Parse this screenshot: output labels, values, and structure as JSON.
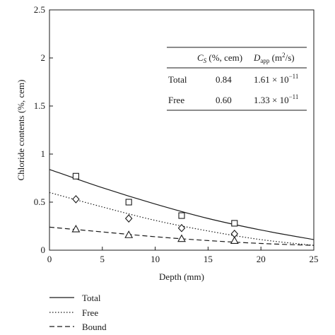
{
  "chart_data": {
    "type": "scatter",
    "xlabel": "Depth (mm)",
    "ylabel": "Chloride contents (%, cem)",
    "xlim": [
      0,
      25
    ],
    "ylim": [
      0,
      2.5
    ],
    "x_ticks": [
      "0",
      "5",
      "10",
      "15",
      "20",
      "25"
    ],
    "y_ticks": [
      "0",
      "0.5",
      "1",
      "1.5",
      "2",
      "2.5"
    ],
    "grid": false,
    "legend_placement": "bottom-left, below plot",
    "series": [
      {
        "name": "Total",
        "marker": "square",
        "line_style": "solid",
        "points_x": [
          2.5,
          7.5,
          12.5,
          17.5
        ],
        "points_y": [
          0.77,
          0.5,
          0.36,
          0.28
        ],
        "curve_x": [
          0,
          5,
          10,
          15,
          20,
          25
        ],
        "curve_y": [
          0.84,
          0.65,
          0.48,
          0.33,
          0.21,
          0.11
        ]
      },
      {
        "name": "Free",
        "marker": "diamond",
        "line_style": "dotted",
        "points_x": [
          2.5,
          7.5,
          12.5,
          17.5
        ],
        "points_y": [
          0.53,
          0.33,
          0.23,
          0.17
        ],
        "curve_x": [
          0,
          5,
          10,
          15,
          20,
          25
        ],
        "curve_y": [
          0.6,
          0.45,
          0.31,
          0.2,
          0.11,
          0.05
        ]
      },
      {
        "name": "Bound",
        "marker": "triangle",
        "line_style": "dashed",
        "points_x": [
          2.5,
          7.5,
          12.5,
          17.5
        ],
        "points_y": [
          0.22,
          0.16,
          0.12,
          0.1
        ],
        "curve_x": [
          0,
          5,
          10,
          15,
          20,
          25
        ],
        "curve_y": [
          0.24,
          0.19,
          0.14,
          0.1,
          0.07,
          0.05
        ]
      }
    ],
    "table": {
      "header_cs": "C",
      "header_cs_sub": "S",
      "header_cs_rest": " (%, cem)",
      "header_d": "D",
      "header_d_sub": "app",
      "header_d_rest": " (m",
      "header_d_sup": "2",
      "header_d_end": "/s)",
      "rows": [
        {
          "label": "Total",
          "cs": "0.84",
          "d_mant": "1.61 × 10",
          "d_exp": "−11"
        },
        {
          "label": "Free",
          "cs": "0.60",
          "d_mant": "1.33 × 10",
          "d_exp": "−11"
        }
      ]
    },
    "legend": [
      "Total",
      "Free",
      "Bound"
    ]
  },
  "colors": {
    "ink": "#1a1a1a",
    "background": "#ffffff"
  }
}
